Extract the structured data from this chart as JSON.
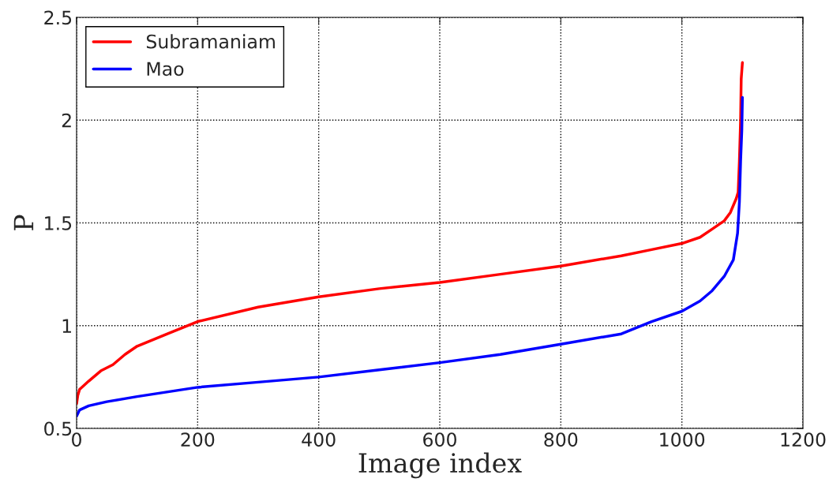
{
  "chart_data": {
    "type": "line",
    "xlabel": "Image index",
    "ylabel": "P",
    "xlim": [
      0,
      1200
    ],
    "xticks": [
      0,
      200,
      400,
      600,
      800,
      1000,
      1200
    ],
    "ylim": [
      0.5,
      2.5
    ],
    "yticks": [
      0.5,
      1,
      1.5,
      2,
      2.5
    ],
    "grid": true,
    "legend": "top left",
    "line_style": "solid",
    "series": [
      {
        "name": "Subramaniam",
        "color": "#ff0000",
        "x": [
          0,
          2,
          5,
          20,
          40,
          60,
          80,
          100,
          150,
          200,
          300,
          400,
          500,
          600,
          700,
          800,
          900,
          950,
          1000,
          1030,
          1050,
          1070,
          1080,
          1090,
          1093,
          1095,
          1097,
          1098,
          1100
        ],
        "values": [
          0.62,
          0.66,
          0.69,
          0.73,
          0.78,
          0.81,
          0.86,
          0.9,
          0.96,
          1.02,
          1.09,
          1.14,
          1.18,
          1.21,
          1.25,
          1.29,
          1.34,
          1.37,
          1.4,
          1.43,
          1.47,
          1.51,
          1.55,
          1.62,
          1.65,
          1.8,
          2.0,
          2.2,
          2.28
        ]
      },
      {
        "name": "Mao",
        "color": "#0000ff",
        "x": [
          0,
          5,
          20,
          50,
          100,
          200,
          300,
          400,
          500,
          600,
          700,
          800,
          900,
          950,
          1000,
          1030,
          1050,
          1070,
          1085,
          1092,
          1095,
          1097,
          1099,
          1100
        ],
        "values": [
          0.56,
          0.59,
          0.61,
          0.63,
          0.655,
          0.7,
          0.725,
          0.75,
          0.785,
          0.82,
          0.86,
          0.91,
          0.96,
          1.02,
          1.07,
          1.12,
          1.17,
          1.24,
          1.32,
          1.45,
          1.6,
          1.8,
          1.95,
          2.11
        ]
      }
    ]
  }
}
